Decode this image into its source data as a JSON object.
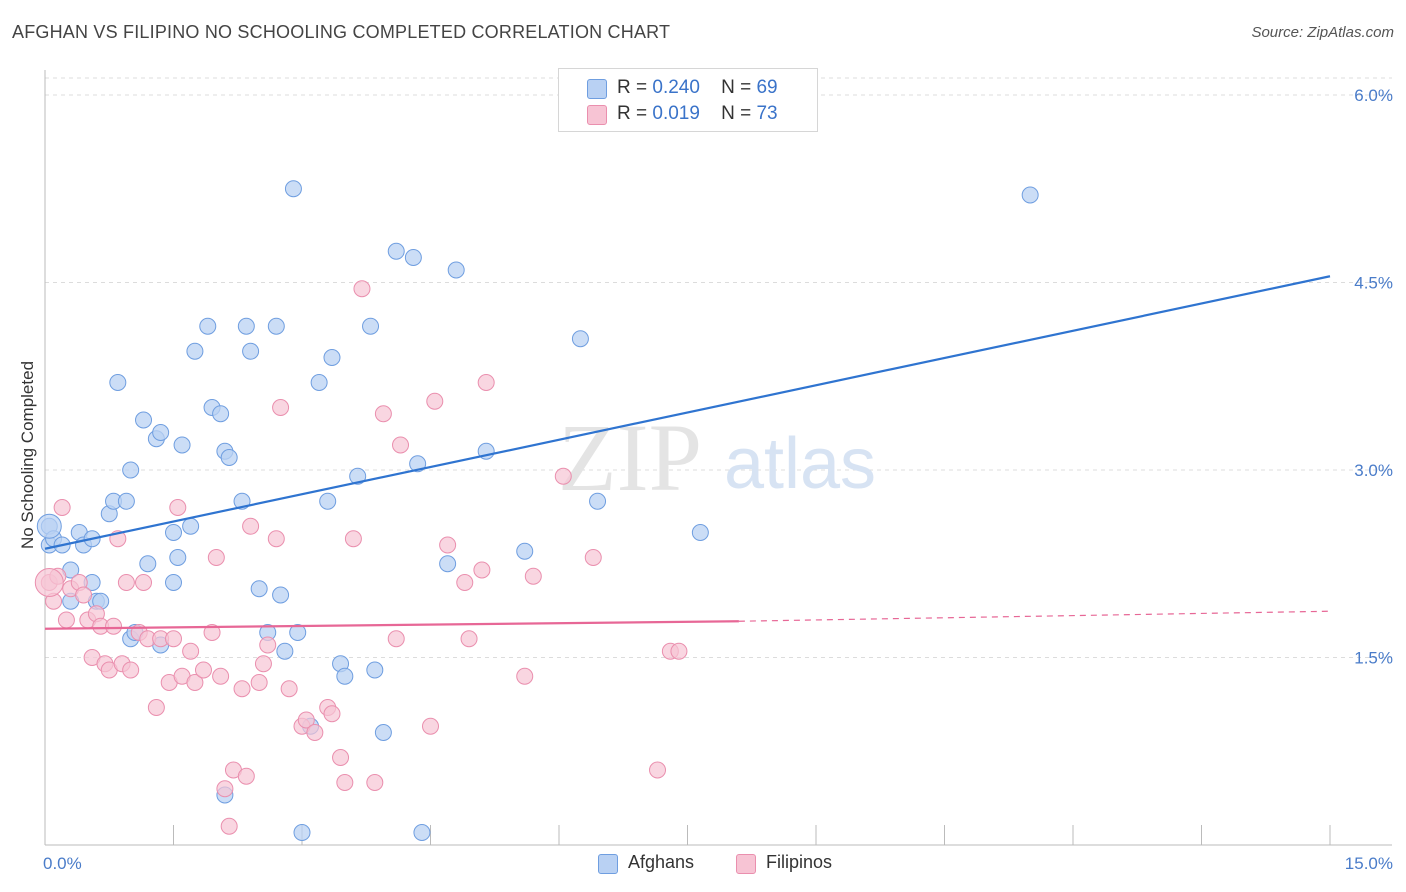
{
  "title": "AFGHAN VS FILIPINO NO SCHOOLING COMPLETED CORRELATION CHART",
  "source": "Source: ZipAtlas.com",
  "watermark": {
    "zip": "ZIP",
    "atlas": "atlas"
  },
  "legend": {
    "rows": [
      {
        "r_label": "R =",
        "r_value": "0.240",
        "n_label": "N =",
        "n_value": "69"
      },
      {
        "r_label": "R =",
        "r_value": "0.019",
        "n_label": "N =",
        "n_value": "73"
      }
    ]
  },
  "bottom_legend": {
    "afghans": "Afghans",
    "filipinos": "Filipinos"
  },
  "colors": {
    "afghans_fill": "#b9d1f3",
    "afghans_stroke": "#6f9ee0",
    "afghans_line": "#2f74d0",
    "filipinos_fill": "#f7c4d4",
    "filipinos_stroke": "#ea8fae",
    "filipinos_line": "#e76796",
    "grid": "#dcdcdc",
    "tick_text": "#4a7cc9"
  },
  "chart_data": {
    "type": "scatter",
    "title": "AFGHAN VS FILIPINO NO SCHOOLING COMPLETED CORRELATION CHART",
    "xlabel": "",
    "ylabel": "No Schooling Completed",
    "xlim": [
      0,
      15
    ],
    "ylim": [
      0,
      6.2
    ],
    "x_tick_labels": [
      "0.0%",
      "15.0%"
    ],
    "y_ticks": [
      1.5,
      3.0,
      4.5,
      6.0
    ],
    "y_tick_labels": [
      "1.5%",
      "3.0%",
      "4.5%",
      "6.0%"
    ],
    "grid": "horizontal dashed",
    "series": [
      {
        "name": "Afghans",
        "trend": {
          "x": [
            0,
            15
          ],
          "y": [
            2.37,
            4.55
          ]
        },
        "points": [
          [
            0.05,
            2.55
          ],
          [
            0.05,
            2.4
          ],
          [
            0.1,
            2.45
          ],
          [
            0.2,
            2.4
          ],
          [
            0.3,
            1.95
          ],
          [
            0.3,
            2.2
          ],
          [
            0.4,
            2.5
          ],
          [
            0.45,
            2.4
          ],
          [
            0.55,
            2.1
          ],
          [
            0.6,
            1.95
          ],
          [
            0.65,
            1.95
          ],
          [
            0.75,
            2.65
          ],
          [
            0.8,
            2.75
          ],
          [
            0.85,
            3.7
          ],
          [
            0.95,
            2.75
          ],
          [
            1.0,
            3.0
          ],
          [
            1.0,
            1.65
          ],
          [
            1.05,
            1.7
          ],
          [
            1.15,
            3.4
          ],
          [
            1.2,
            2.25
          ],
          [
            1.3,
            3.25
          ],
          [
            1.35,
            3.3
          ],
          [
            1.35,
            1.6
          ],
          [
            1.5,
            2.5
          ],
          [
            1.5,
            2.1
          ],
          [
            1.55,
            2.3
          ],
          [
            1.6,
            3.2
          ],
          [
            1.7,
            2.55
          ],
          [
            1.75,
            3.95
          ],
          [
            1.9,
            4.15
          ],
          [
            1.95,
            3.5
          ],
          [
            2.05,
            3.45
          ],
          [
            2.1,
            3.15
          ],
          [
            2.15,
            3.1
          ],
          [
            2.3,
            2.75
          ],
          [
            2.35,
            4.15
          ],
          [
            2.4,
            3.95
          ],
          [
            2.5,
            2.05
          ],
          [
            2.6,
            1.7
          ],
          [
            2.7,
            4.15
          ],
          [
            2.75,
            2.0
          ],
          [
            2.8,
            1.55
          ],
          [
            2.9,
            5.25
          ],
          [
            2.95,
            1.7
          ],
          [
            3.0,
            0.1
          ],
          [
            3.1,
            0.95
          ],
          [
            3.2,
            3.7
          ],
          [
            3.3,
            2.75
          ],
          [
            3.35,
            3.9
          ],
          [
            3.45,
            1.45
          ],
          [
            3.5,
            1.35
          ],
          [
            3.65,
            2.95
          ],
          [
            3.8,
            4.15
          ],
          [
            3.85,
            1.4
          ],
          [
            3.95,
            0.9
          ],
          [
            4.1,
            4.75
          ],
          [
            4.3,
            4.7
          ],
          [
            4.35,
            3.05
          ],
          [
            4.4,
            0.1
          ],
          [
            4.7,
            2.25
          ],
          [
            4.8,
            4.6
          ],
          [
            5.15,
            3.15
          ],
          [
            5.6,
            2.35
          ],
          [
            6.25,
            4.05
          ],
          [
            6.45,
            2.75
          ],
          [
            7.65,
            2.5
          ],
          [
            11.5,
            5.2
          ],
          [
            2.1,
            0.4
          ],
          [
            0.55,
            2.45
          ]
        ]
      },
      {
        "name": "Filipinos",
        "trend": {
          "x": [
            0,
            8.1
          ],
          "y": [
            1.73,
            1.79
          ]
        },
        "trend_dashed": {
          "x": [
            8.1,
            15
          ],
          "y": [
            1.79,
            1.87
          ]
        },
        "points": [
          [
            0.05,
            2.1
          ],
          [
            0.1,
            1.95
          ],
          [
            0.15,
            2.15
          ],
          [
            0.2,
            2.7
          ],
          [
            0.25,
            1.8
          ],
          [
            0.3,
            2.05
          ],
          [
            0.4,
            2.1
          ],
          [
            0.45,
            2.0
          ],
          [
            0.5,
            1.8
          ],
          [
            0.55,
            1.5
          ],
          [
            0.6,
            1.85
          ],
          [
            0.65,
            1.75
          ],
          [
            0.7,
            1.45
          ],
          [
            0.75,
            1.4
          ],
          [
            0.8,
            1.75
          ],
          [
            0.85,
            2.45
          ],
          [
            0.9,
            1.45
          ],
          [
            0.95,
            2.1
          ],
          [
            1.0,
            1.4
          ],
          [
            1.1,
            1.7
          ],
          [
            1.15,
            2.1
          ],
          [
            1.2,
            1.65
          ],
          [
            1.3,
            1.1
          ],
          [
            1.35,
            1.65
          ],
          [
            1.45,
            1.3
          ],
          [
            1.5,
            1.65
          ],
          [
            1.55,
            2.7
          ],
          [
            1.6,
            1.35
          ],
          [
            1.7,
            1.55
          ],
          [
            1.75,
            1.3
          ],
          [
            1.85,
            1.4
          ],
          [
            1.95,
            1.7
          ],
          [
            2.0,
            2.3
          ],
          [
            2.05,
            1.35
          ],
          [
            2.1,
            0.45
          ],
          [
            2.15,
            0.15
          ],
          [
            2.2,
            0.6
          ],
          [
            2.3,
            1.25
          ],
          [
            2.35,
            0.55
          ],
          [
            2.4,
            2.55
          ],
          [
            2.5,
            1.3
          ],
          [
            2.55,
            1.45
          ],
          [
            2.6,
            1.6
          ],
          [
            2.7,
            2.45
          ],
          [
            2.75,
            3.5
          ],
          [
            2.85,
            1.25
          ],
          [
            3.0,
            0.95
          ],
          [
            3.05,
            1.0
          ],
          [
            3.15,
            0.9
          ],
          [
            3.3,
            1.1
          ],
          [
            3.35,
            1.05
          ],
          [
            3.45,
            0.7
          ],
          [
            3.5,
            0.5
          ],
          [
            3.6,
            2.45
          ],
          [
            3.7,
            4.45
          ],
          [
            3.85,
            0.5
          ],
          [
            3.95,
            3.45
          ],
          [
            4.1,
            1.65
          ],
          [
            4.15,
            3.2
          ],
          [
            4.5,
            0.95
          ],
          [
            4.55,
            3.55
          ],
          [
            4.7,
            2.4
          ],
          [
            4.9,
            2.1
          ],
          [
            4.95,
            1.65
          ],
          [
            5.1,
            2.2
          ],
          [
            5.15,
            3.7
          ],
          [
            5.6,
            1.35
          ],
          [
            5.7,
            2.15
          ],
          [
            6.05,
            2.95
          ],
          [
            6.4,
            2.3
          ],
          [
            7.15,
            0.6
          ],
          [
            7.3,
            1.55
          ],
          [
            7.4,
            1.55
          ]
        ]
      }
    ]
  }
}
